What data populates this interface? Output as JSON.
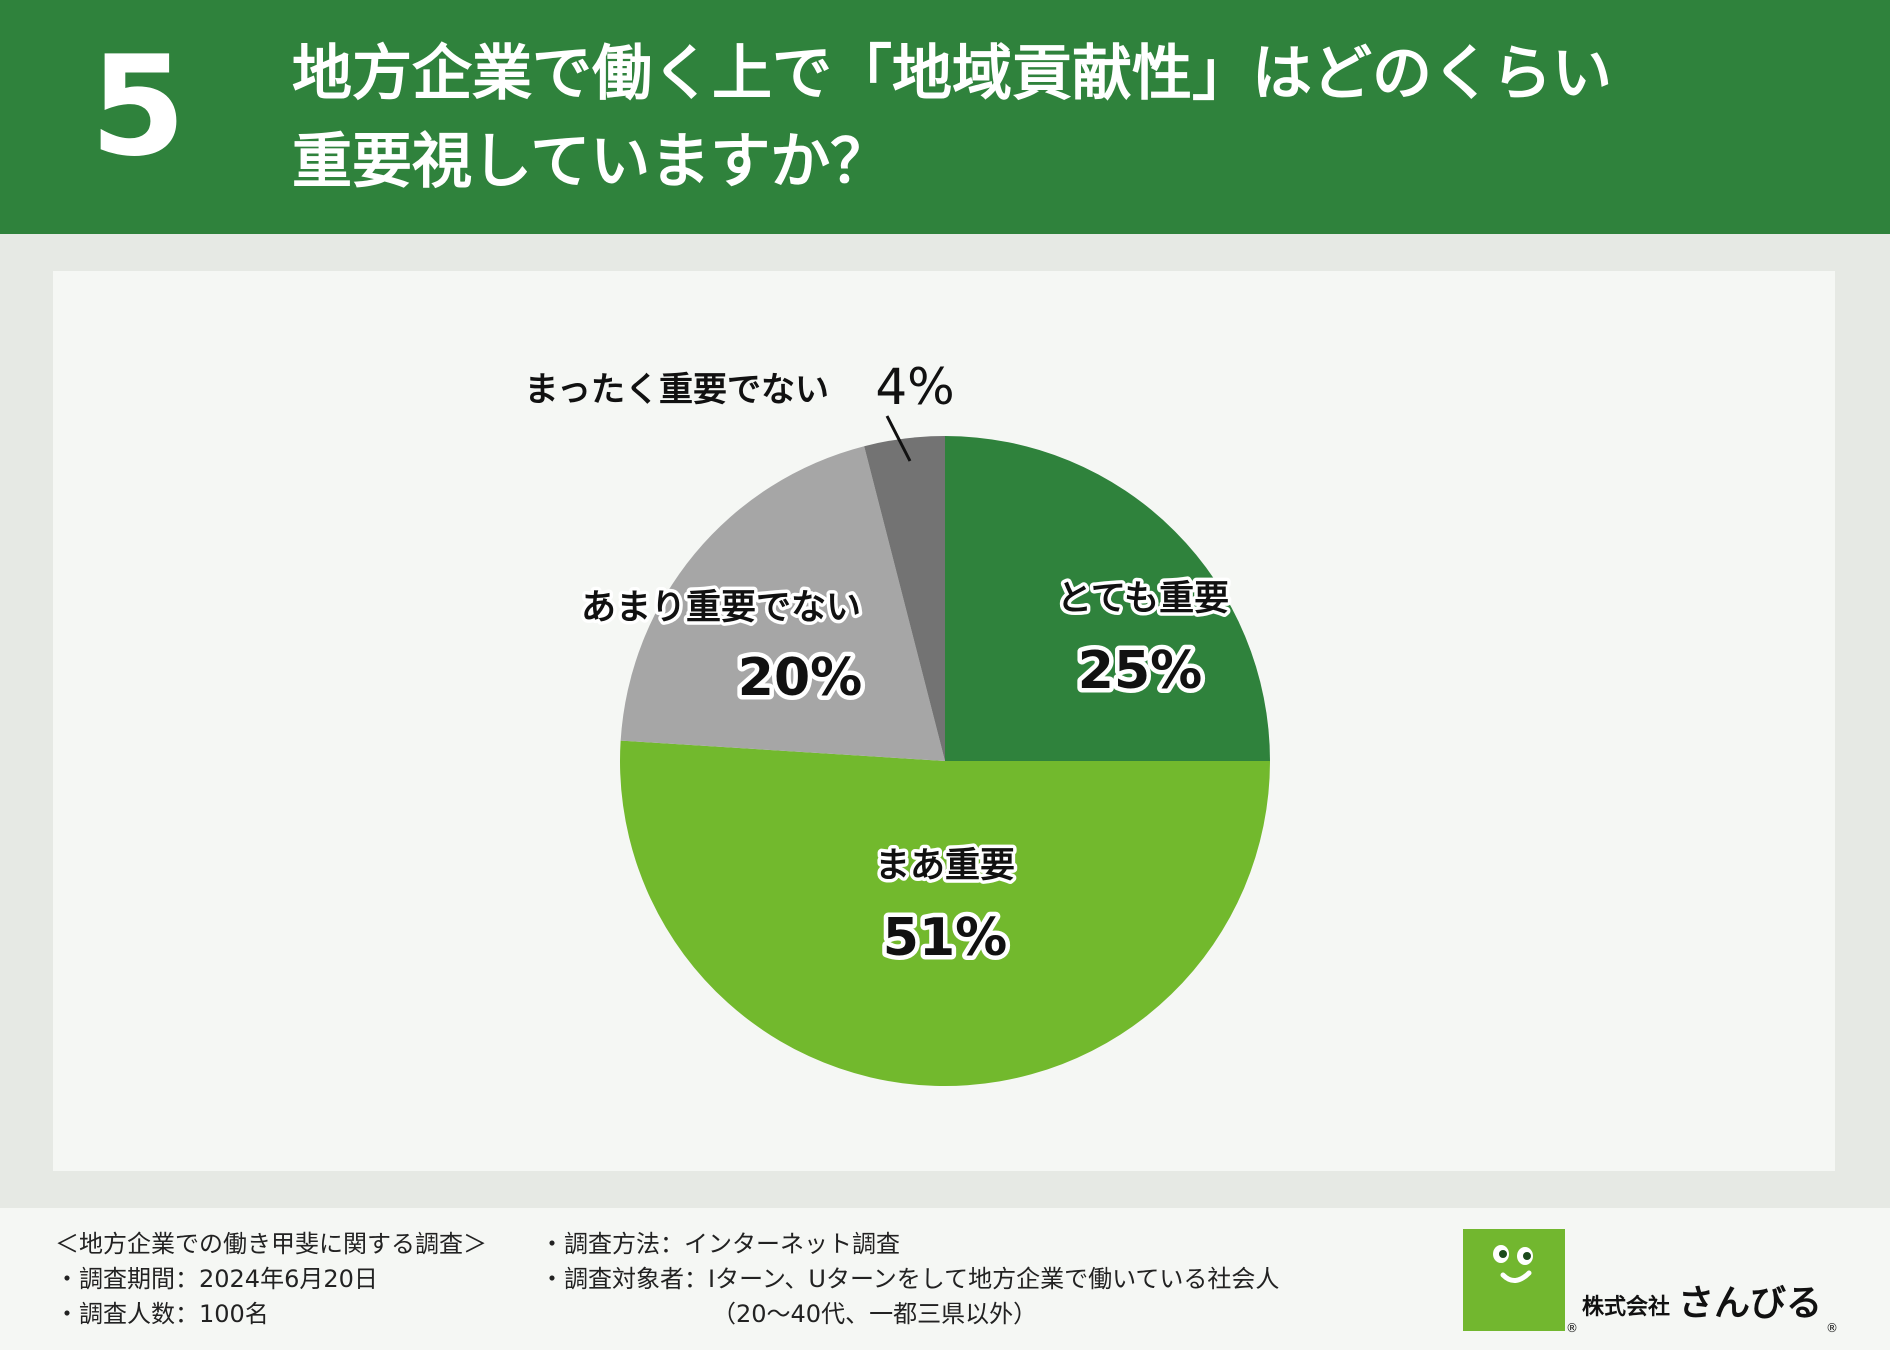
{
  "header": {
    "number": "5",
    "title_line1": "地方企業で働く上で「地域貢献性」はどのくらい",
    "title_line2": "重要視していますか？"
  },
  "chart_data": {
    "type": "pie",
    "title": "地方企業で働く上で「地域貢献性」はどのくらい重要視していますか？",
    "slices": [
      {
        "label": "とても重要",
        "value": 25,
        "display": "25%",
        "color": "#2f823c"
      },
      {
        "label": "まあ重要",
        "value": 51,
        "display": "51%",
        "color": "#72b92d"
      },
      {
        "label": "あまり重要でない",
        "value": 20,
        "display": "20%",
        "color": "#a6a6a6"
      },
      {
        "label": "まったく重要でない",
        "value": 4,
        "display": "4%",
        "color": "#737373"
      }
    ],
    "start": "12 o'clock",
    "direction": "clockwise"
  },
  "footer": {
    "survey_title": "＜地方企業での働き甲斐に関する調査＞",
    "period": "・調査期間：2024年6月20日",
    "respondents": "・調査人数：100名",
    "method": "・調査方法：インターネット調査",
    "target": "・調査対象者：Iターン、Uターンをして地方企業で働いている社会人",
    "target_note": "（20～40代、一都三県以外）"
  },
  "logo": {
    "company_prefix": "株式会社",
    "company_name": "さんびる",
    "registered_mark": "®",
    "color": "#72b72f"
  }
}
